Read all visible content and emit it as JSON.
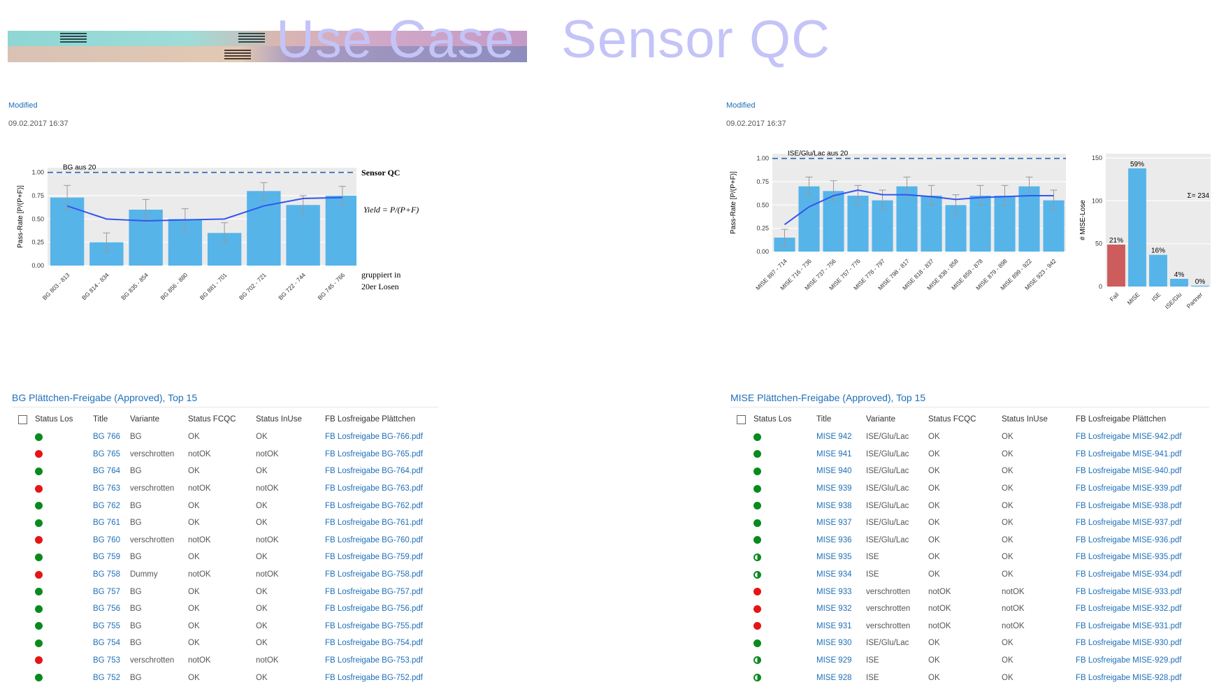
{
  "page_title": "Use Case   Sensor QC",
  "left_meta": {
    "label": "Modified",
    "value": "09.02.2017 16:37"
  },
  "right_meta": {
    "label": "Modified",
    "value": "09.02.2017 16:37"
  },
  "colors": {
    "bar": "#56b4e9",
    "line": "#3355ee",
    "fail": "#cd5c5c",
    "green": "#0a8a1e",
    "red": "#e51515",
    "link": "#1f6fb8"
  },
  "chart_data": [
    {
      "type": "bar",
      "annotation": "BG aus 20",
      "ylabel": "Pass-Rate [P/(P+F)]",
      "ylim": [
        0,
        1.05
      ],
      "yticks": [
        "0.00",
        "0.25",
        "0.50",
        "0.75",
        "1.00"
      ],
      "reference_line": 1.0,
      "categories": [
        "BG 803 - 813",
        "BG 814 - 834",
        "BG 835 - 854",
        "BG 856 - 880",
        "BG 881 - 701",
        "BG 702 - 721",
        "BG 722 - 744",
        "BG 745 - 766"
      ],
      "values": [
        0.73,
        0.25,
        0.6,
        0.5,
        0.35,
        0.8,
        0.65,
        0.75
      ],
      "err_low": [
        0.6,
        0.15,
        0.5,
        0.38,
        0.25,
        0.7,
        0.55,
        0.65
      ],
      "err_high": [
        0.86,
        0.35,
        0.71,
        0.61,
        0.46,
        0.89,
        0.75,
        0.85
      ],
      "trend": [
        0.64,
        0.5,
        0.48,
        0.49,
        0.5,
        0.64,
        0.72,
        0.73
      ]
    },
    {
      "type": "bar",
      "annotation": "ISE/Glu/Lac aus 20",
      "ylabel": "Pass-Rate [P/(P+F)]",
      "ylim": [
        0,
        1.05
      ],
      "yticks": [
        "0.00",
        "0.25",
        "0.50",
        "0.75",
        "1.00"
      ],
      "reference_line": 1.0,
      "categories": [
        "MISE 887 - 714",
        "MISE 716 - 736",
        "MISE 737 - 756",
        "MISE 757 - 776",
        "MISE 778 - 797",
        "MISE 798 - 817",
        "MISE 818 - 837",
        "MISE 838 - 858",
        "MISE 859 - 878",
        "MISE 879 - 898",
        "MISE 899 - 922",
        "MISE 923 - 942"
      ],
      "values": [
        0.15,
        0.7,
        0.65,
        0.6,
        0.55,
        0.7,
        0.6,
        0.5,
        0.6,
        0.6,
        0.7,
        0.55
      ],
      "err_low": [
        0.05,
        0.6,
        0.55,
        0.5,
        0.45,
        0.6,
        0.5,
        0.4,
        0.5,
        0.5,
        0.6,
        0.45
      ],
      "err_high": [
        0.24,
        0.8,
        0.76,
        0.71,
        0.66,
        0.8,
        0.71,
        0.61,
        0.71,
        0.71,
        0.8,
        0.66
      ],
      "trend": [
        0.29,
        0.48,
        0.6,
        0.66,
        0.61,
        0.61,
        0.59,
        0.56,
        0.58,
        0.59,
        0.6,
        0.6
      ]
    },
    {
      "type": "bar",
      "ylabel": "# MISE-Lose",
      "ylim": [
        0,
        155
      ],
      "yticks": [
        "0",
        "50",
        "100",
        "150"
      ],
      "categories": [
        "Fail",
        "MISE",
        "ISE",
        "ISE/Glu",
        "Partner"
      ],
      "values": [
        49,
        138,
        37,
        9,
        1
      ],
      "labels": [
        "21%",
        "59%",
        "16%",
        "4%",
        "0%"
      ],
      "bar_colors": [
        "#cd5c5c",
        "#56b4e9",
        "#56b4e9",
        "#56b4e9",
        "#56b4e9"
      ],
      "sum_label": "Σ= 234"
    }
  ],
  "bg_chart_notes": {
    "heading": "Sensor QC",
    "formula": "Yield = P/(P+F)",
    "group_line1": "gruppiert in",
    "group_line2": "20er Losen"
  },
  "bg_list": {
    "title": "BG Plättchen-Freigabe (Approved), Top 15",
    "columns": [
      "Status Los",
      "Title",
      "Variante",
      "Status FCQC",
      "Status InUse",
      "FB Losfreigabe Plättchen"
    ],
    "rows": [
      {
        "status": "green",
        "title": "BG 766",
        "variante": "BG",
        "fcqc": "OK",
        "inuse": "OK",
        "file": "FB Losfreigabe BG-766.pdf"
      },
      {
        "status": "red",
        "title": "BG 765",
        "variante": "verschrotten",
        "fcqc": "notOK",
        "inuse": "notOK",
        "file": "FB Losfreigabe BG-765.pdf"
      },
      {
        "status": "green",
        "title": "BG 764",
        "variante": "BG",
        "fcqc": "OK",
        "inuse": "OK",
        "file": "FB Losfreigabe BG-764.pdf"
      },
      {
        "status": "red",
        "title": "BG 763",
        "variante": "verschrotten",
        "fcqc": "notOK",
        "inuse": "notOK",
        "file": "FB Losfreigabe BG-763.pdf"
      },
      {
        "status": "green",
        "title": "BG 762",
        "variante": "BG",
        "fcqc": "OK",
        "inuse": "OK",
        "file": "FB Losfreigabe BG-762.pdf"
      },
      {
        "status": "green",
        "title": "BG 761",
        "variante": "BG",
        "fcqc": "OK",
        "inuse": "OK",
        "file": "FB Losfreigabe BG-761.pdf"
      },
      {
        "status": "red",
        "title": "BG 760",
        "variante": "verschrotten",
        "fcqc": "notOK",
        "inuse": "notOK",
        "file": "FB Losfreigabe BG-760.pdf"
      },
      {
        "status": "green",
        "title": "BG 759",
        "variante": "BG",
        "fcqc": "OK",
        "inuse": "OK",
        "file": "FB Losfreigabe BG-759.pdf"
      },
      {
        "status": "red",
        "title": "BG 758",
        "variante": "Dummy",
        "fcqc": "notOK",
        "inuse": "notOK",
        "file": "FB Losfreigabe BG-758.pdf"
      },
      {
        "status": "green",
        "title": "BG 757",
        "variante": "BG",
        "fcqc": "OK",
        "inuse": "OK",
        "file": "FB Losfreigabe BG-757.pdf"
      },
      {
        "status": "green",
        "title": "BG 756",
        "variante": "BG",
        "fcqc": "OK",
        "inuse": "OK",
        "file": "FB Losfreigabe BG-756.pdf"
      },
      {
        "status": "green",
        "title": "BG 755",
        "variante": "BG",
        "fcqc": "OK",
        "inuse": "OK",
        "file": "FB Losfreigabe BG-755.pdf"
      },
      {
        "status": "green",
        "title": "BG 754",
        "variante": "BG",
        "fcqc": "OK",
        "inuse": "OK",
        "file": "FB Losfreigabe BG-754.pdf"
      },
      {
        "status": "red",
        "title": "BG 753",
        "variante": "verschrotten",
        "fcqc": "notOK",
        "inuse": "notOK",
        "file": "FB Losfreigabe BG-753.pdf"
      },
      {
        "status": "green",
        "title": "BG 752",
        "variante": "BG",
        "fcqc": "OK",
        "inuse": "OK",
        "file": "FB Losfreigabe BG-752.pdf"
      }
    ]
  },
  "mise_list": {
    "title": "MISE Plättchen-Freigabe (Approved), Top 15",
    "columns": [
      "Status Los",
      "Title",
      "Variante",
      "Status FCQC",
      "Status InUse",
      "FB Losfreigabe Plättchen"
    ],
    "rows": [
      {
        "status": "green",
        "title": "MISE 942",
        "variante": "ISE/Glu/Lac",
        "fcqc": "OK",
        "inuse": "OK",
        "file": "FB Losfreigabe MISE-942.pdf"
      },
      {
        "status": "green",
        "title": "MISE 941",
        "variante": "ISE/Glu/Lac",
        "fcqc": "OK",
        "inuse": "OK",
        "file": "FB Losfreigabe MISE-941.pdf"
      },
      {
        "status": "green",
        "title": "MISE 940",
        "variante": "ISE/Glu/Lac",
        "fcqc": "OK",
        "inuse": "OK",
        "file": "FB Losfreigabe MISE-940.pdf"
      },
      {
        "status": "green",
        "title": "MISE 939",
        "variante": "ISE/Glu/Lac",
        "fcqc": "OK",
        "inuse": "OK",
        "file": "FB Losfreigabe MISE-939.pdf"
      },
      {
        "status": "green",
        "title": "MISE 938",
        "variante": "ISE/Glu/Lac",
        "fcqc": "OK",
        "inuse": "OK",
        "file": "FB Losfreigabe MISE-938.pdf"
      },
      {
        "status": "green",
        "title": "MISE 937",
        "variante": "ISE/Glu/Lac",
        "fcqc": "OK",
        "inuse": "OK",
        "file": "FB Losfreigabe MISE-937.pdf"
      },
      {
        "status": "green",
        "title": "MISE 936",
        "variante": "ISE/Glu/Lac",
        "fcqc": "OK",
        "inuse": "OK",
        "file": "FB Losfreigabe MISE-936.pdf"
      },
      {
        "status": "half",
        "title": "MISE 935",
        "variante": "ISE",
        "fcqc": "OK",
        "inuse": "OK",
        "file": "FB Losfreigabe MISE-935.pdf"
      },
      {
        "status": "half",
        "title": "MISE 934",
        "variante": "ISE",
        "fcqc": "OK",
        "inuse": "OK",
        "file": "FB Losfreigabe MISE-934.pdf"
      },
      {
        "status": "red",
        "title": "MISE 933",
        "variante": "verschrotten",
        "fcqc": "notOK",
        "inuse": "notOK",
        "file": "FB Losfreigabe MISE-933.pdf"
      },
      {
        "status": "red",
        "title": "MISE 932",
        "variante": "verschrotten",
        "fcqc": "notOK",
        "inuse": "notOK",
        "file": "FB Losfreigabe MISE-932.pdf"
      },
      {
        "status": "red",
        "title": "MISE 931",
        "variante": "verschrotten",
        "fcqc": "notOK",
        "inuse": "notOK",
        "file": "FB Losfreigabe MISE-931.pdf"
      },
      {
        "status": "green",
        "title": "MISE 930",
        "variante": "ISE/Glu/Lac",
        "fcqc": "OK",
        "inuse": "OK",
        "file": "FB Losfreigabe MISE-930.pdf"
      },
      {
        "status": "half",
        "title": "MISE 929",
        "variante": "ISE",
        "fcqc": "OK",
        "inuse": "OK",
        "file": "FB Losfreigabe MISE-929.pdf"
      },
      {
        "status": "half",
        "title": "MISE 928",
        "variante": "ISE",
        "fcqc": "OK",
        "inuse": "OK",
        "file": "FB Losfreigabe MISE-928.pdf"
      }
    ]
  }
}
